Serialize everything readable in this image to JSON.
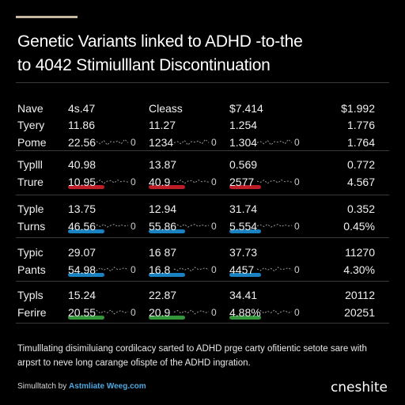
{
  "title_lines": [
    "Genetic Variants linked to ADHD -to-the",
    "to 4042 Stimiulllant Discontinuation"
  ],
  "colors": {
    "red": "#d0202a",
    "blue": "#1e90d6",
    "green": "#3aa640",
    "accent": "#c9b8a0"
  },
  "chart_data": {
    "type": "table",
    "columns": [
      "Nave",
      "4s.47",
      "Cleass",
      "$7.414",
      "$1.992"
    ],
    "rows": [
      {
        "label": "Tyery",
        "values": [
          "11.86",
          "11.27",
          "1.254",
          "1.776"
        ],
        "highlight": null
      },
      {
        "label": "Pome",
        "values": [
          "22.56",
          "1234",
          "1.304",
          "1.764"
        ],
        "highlight": null,
        "sparkline": [
          0.4,
          0.5,
          0.3,
          0.6,
          0.2,
          0.5,
          0.45,
          0.55,
          0.3,
          0.7,
          0.4
        ]
      },
      {
        "label": "Typlll",
        "values": [
          "40.98",
          "13.87",
          "0.569",
          "0.772"
        ],
        "highlight": null
      },
      {
        "label": "Trure",
        "values": [
          "10.95",
          "40.9",
          "2577",
          "4.567"
        ],
        "highlight": "red",
        "sparkline": [
          0.5,
          0.4,
          0.6,
          0.3,
          0.5,
          0.55,
          0.35,
          0.6,
          0.45,
          0.5,
          0.4
        ]
      },
      {
        "label": "Typle",
        "values": [
          "13.75",
          "12.94",
          "31.74",
          "0.352"
        ],
        "highlight": null
      },
      {
        "label": "Turns",
        "values": [
          "46.56",
          "55.86",
          "5.554",
          "0.45%"
        ],
        "highlight": "blue",
        "sparkline": [
          0.45,
          0.55,
          0.4,
          0.6,
          0.35,
          0.5,
          0.6,
          0.4,
          0.55,
          0.45,
          0.5
        ]
      },
      {
        "label": "Typic",
        "values": [
          "29.07",
          "16 87",
          "37.73",
          "11270"
        ],
        "highlight": null
      },
      {
        "label": "Pants",
        "values": [
          "54.98",
          "16.8",
          "4457",
          "4.30%"
        ],
        "highlight": "blue",
        "sparkline": [
          0.5,
          0.35,
          0.6,
          0.4,
          0.55,
          0.3,
          0.65,
          0.45,
          0.5,
          0.6,
          0.4
        ]
      },
      {
        "label": "Typls",
        "values": [
          "15.24",
          "22.87",
          "34.41",
          "20112"
        ],
        "highlight": null
      },
      {
        "label": "Ferire",
        "values": [
          "20.55",
          "20.9",
          "4.88%",
          "20251"
        ],
        "highlight": "green",
        "sparkline": [
          0.45,
          0.6,
          0.35,
          0.55,
          0.4,
          0.65,
          0.3,
          0.5,
          0.6,
          0.4,
          0.5
        ]
      }
    ],
    "zero_marker": "0"
  },
  "footnote": "Timulllating disimiluiang cordilcacy sarted to ADHD prge carty ofitientic setote sare with arpsrt to neve long carange ofispte of the ADHD ingration.",
  "credit": {
    "prefix": "Simulltatch by",
    "name": "Astmliate Weeg.com"
  },
  "logo": "cneshite"
}
